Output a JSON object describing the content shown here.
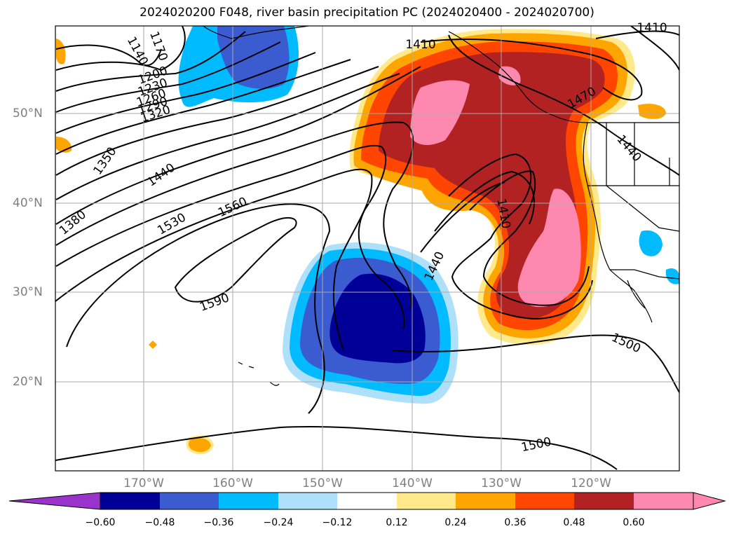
{
  "title": "2024020200 F048, river basin precipitation PC (2024020400 - 2024020700)",
  "lat_labels": [
    "50°N",
    "40°N",
    "30°N",
    "20°N"
  ],
  "lon_labels": [
    "170°W",
    "160°W",
    "150°W",
    "140°W",
    "130°W",
    "120°W"
  ],
  "contour_labels": [
    "1140",
    "1170",
    "1200",
    "1230",
    "1260",
    "1290",
    "1320",
    "1350",
    "1380",
    "1410",
    "1410",
    "1410",
    "1440",
    "1440",
    "1440",
    "1470",
    "1500",
    "1500",
    "1530",
    "1560",
    "1590"
  ],
  "colorbar": {
    "ticks": [
      "−0.60",
      "−0.48",
      "−0.36",
      "−0.24",
      "−0.12",
      "0.12",
      "0.24",
      "0.36",
      "0.48",
      "0.60"
    ],
    "colors": [
      "#9933cc",
      "#000099",
      "#3b5bd1",
      "#00bbff",
      "#aee0fa",
      "#ffffff",
      "#ffe98a",
      "#ffa500",
      "#ff4500",
      "#b22222",
      "#ff88b0"
    ]
  }
}
